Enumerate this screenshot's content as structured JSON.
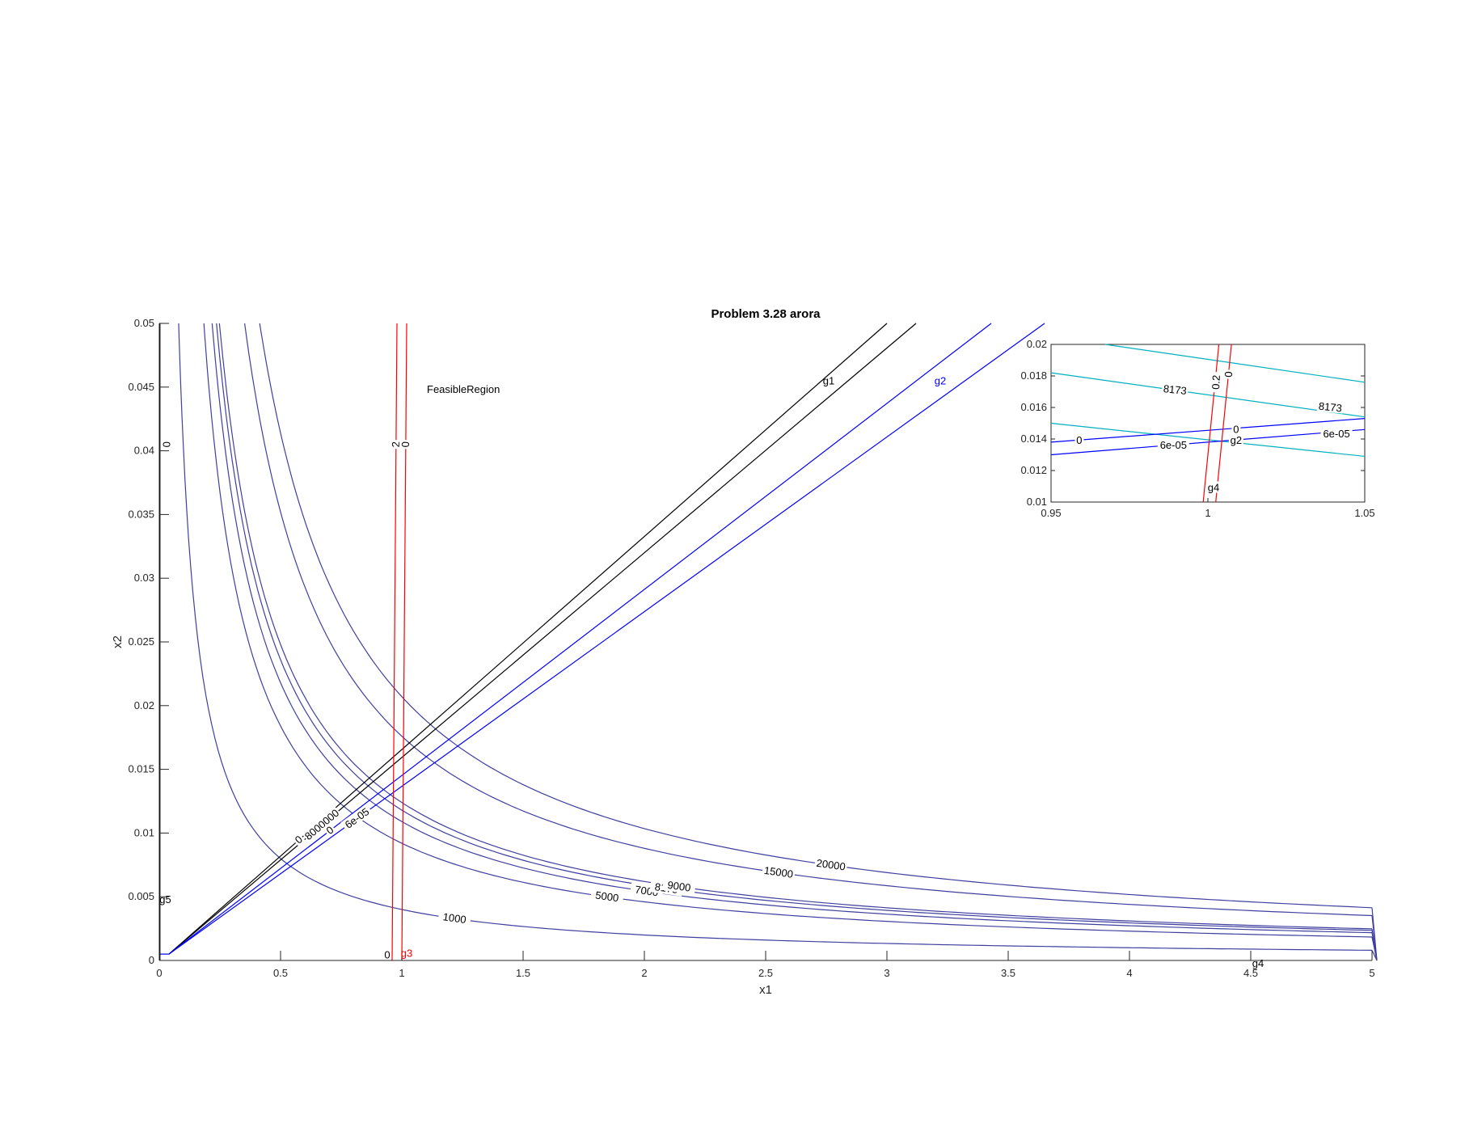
{
  "chart_data": [
    {
      "type": "contour",
      "title": "Problem 3.28 arora",
      "xlabel": "x1",
      "ylabel": "x2",
      "xlim": [
        0,
        5
      ],
      "ylim": [
        0,
        0.05
      ],
      "xticks": [
        "0",
        "0.5",
        "1",
        "1.5",
        "2",
        "2.5",
        "3",
        "3.5",
        "4",
        "4.5",
        "5"
      ],
      "yticks": [
        "0",
        "0.005",
        "0.01",
        "0.015",
        "0.02",
        "0.025",
        "0.03",
        "0.035",
        "0.04",
        "0.045",
        "0.05"
      ],
      "colors": {
        "objective": "#3f3fa0",
        "g1": "#000000",
        "g2": "#0000ff",
        "g3": "#ff0000",
        "inset_objective": "#00b0c0"
      },
      "annotation": "FeasibleRegion",
      "objective_contours": [
        {
          "level": "1000",
          "k": 0.004
        },
        {
          "level": "5000",
          "k": 0.0092
        },
        {
          "level": "7000",
          "k": 0.0109
        },
        {
          "level": "8173",
          "k": 0.0118
        },
        {
          "level": "9000",
          "k": 0.0124
        },
        {
          "level": "15000",
          "k": 0.0176
        },
        {
          "level": "20000",
          "k": 0.0207
        }
      ],
      "constraint_lines": [
        {
          "name": "g1",
          "color": "#000000",
          "points": [
            [
              0.04,
              0.0005
            ],
            [
              3.0,
              0.05
            ]
          ],
          "label": "0"
        },
        {
          "name": "g1",
          "color": "#000000",
          "points": [
            [
              0.04,
              0.0005
            ],
            [
              3.12,
              0.05
            ]
          ],
          "label": "8000000"
        },
        {
          "name": "g2",
          "color": "#0000ff",
          "points": [
            [
              0.04,
              0.0005
            ],
            [
              3.43,
              0.05
            ]
          ],
          "label": "0"
        },
        {
          "name": "g2",
          "color": "#0000ff",
          "points": [
            [
              0.04,
              0.0005
            ],
            [
              3.65,
              0.05
            ]
          ],
          "label": "6e-05"
        },
        {
          "name": "g3",
          "color": "#ff0000",
          "points": [
            [
              0.96,
              0
            ],
            [
              0.98,
              0.05
            ]
          ],
          "label": "2"
        },
        {
          "name": "g3",
          "color": "#ff0000",
          "points": [
            [
              1.0,
              0
            ],
            [
              1.02,
              0.05
            ]
          ],
          "label": "0"
        }
      ],
      "curve_names": {
        "g1": "g1",
        "g2": "g2",
        "g3": "g3",
        "g4": "g4",
        "g5": "g5"
      },
      "extra_labels": {
        "g3_zero": "0",
        "g5_zero": "0"
      }
    },
    {
      "type": "contour",
      "title": "",
      "xlim": [
        0.95,
        1.05
      ],
      "ylim": [
        0.01,
        0.02
      ],
      "xticks": [
        "0.95",
        "1",
        "1.05"
      ],
      "yticks": [
        "0.01",
        "0.012",
        "0.014",
        "0.016",
        "0.018",
        "0.02"
      ],
      "cyan_lines": [
        {
          "points": [
            [
              0.95,
              0.0205
            ],
            [
              1.05,
              0.0176
            ]
          ],
          "label": ""
        },
        {
          "points": [
            [
              0.95,
              0.0182
            ],
            [
              1.05,
              0.0154
            ]
          ],
          "label": "8173"
        },
        {
          "points": [
            [
              0.95,
              0.015
            ],
            [
              1.05,
              0.0129
            ]
          ],
          "label": ""
        }
      ],
      "blue_lines": [
        {
          "points": [
            [
              0.95,
              0.0138
            ],
            [
              1.05,
              0.0153
            ]
          ],
          "label": "0"
        },
        {
          "points": [
            [
              0.95,
              0.013
            ],
            [
              1.05,
              0.0146
            ]
          ],
          "label": "6e-05"
        }
      ],
      "red_lines": [
        {
          "points": [
            [
              0.9985,
              0.01
            ],
            [
              1.0035,
              0.02
            ]
          ],
          "label": "0.2"
        },
        {
          "points": [
            [
              1.0025,
              0.01
            ],
            [
              1.0075,
              0.02
            ]
          ],
          "label": "0"
        }
      ],
      "labels": {
        "l8173a": "8173",
        "l8173b": "8173",
        "l0blue": "0",
        "l0blue2": "0",
        "l6e05a": "6e-05",
        "l6e05b": "6e-05",
        "g2": "g2",
        "g4": "g4",
        "r02": "0.2",
        "r0": "0"
      }
    }
  ]
}
